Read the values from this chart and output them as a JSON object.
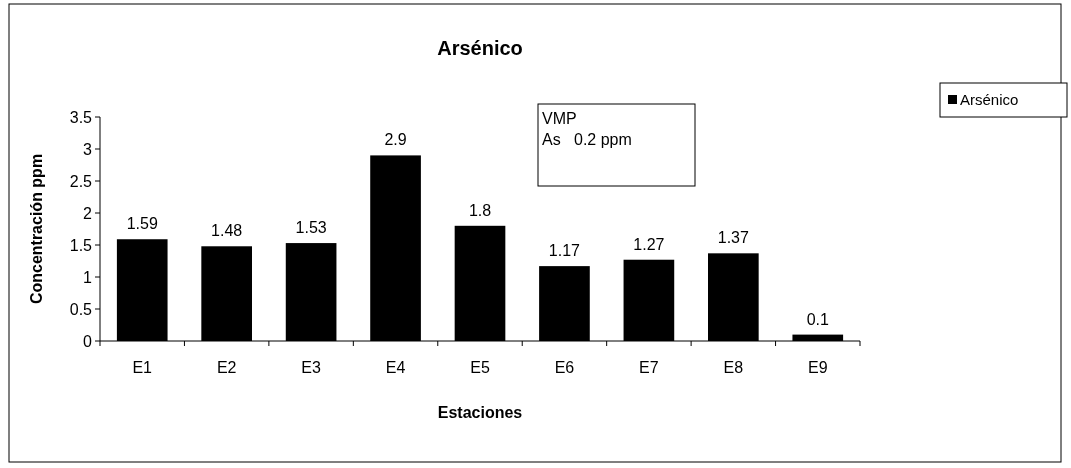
{
  "chart_data": {
    "type": "bar",
    "title": "Arsénico",
    "xlabel": "Estaciones",
    "ylabel": "Concentración ppm",
    "categories": [
      "E1",
      "E2",
      "E3",
      "E4",
      "E5",
      "E6",
      "E7",
      "E8",
      "E9"
    ],
    "series": [
      {
        "name": "Arsénico",
        "color": "#000000",
        "values": [
          1.59,
          1.48,
          1.53,
          2.9,
          1.8,
          1.17,
          1.27,
          1.37,
          0.1
        ]
      }
    ],
    "ylim": [
      0,
      3.5
    ],
    "yticks": [
      0,
      0.5,
      1,
      1.5,
      2,
      2.5,
      3,
      3.5
    ],
    "data_labels": true,
    "grid": false,
    "legend": "top right",
    "annotations": [
      "VMP\nAs   0.2 ppm"
    ]
  }
}
